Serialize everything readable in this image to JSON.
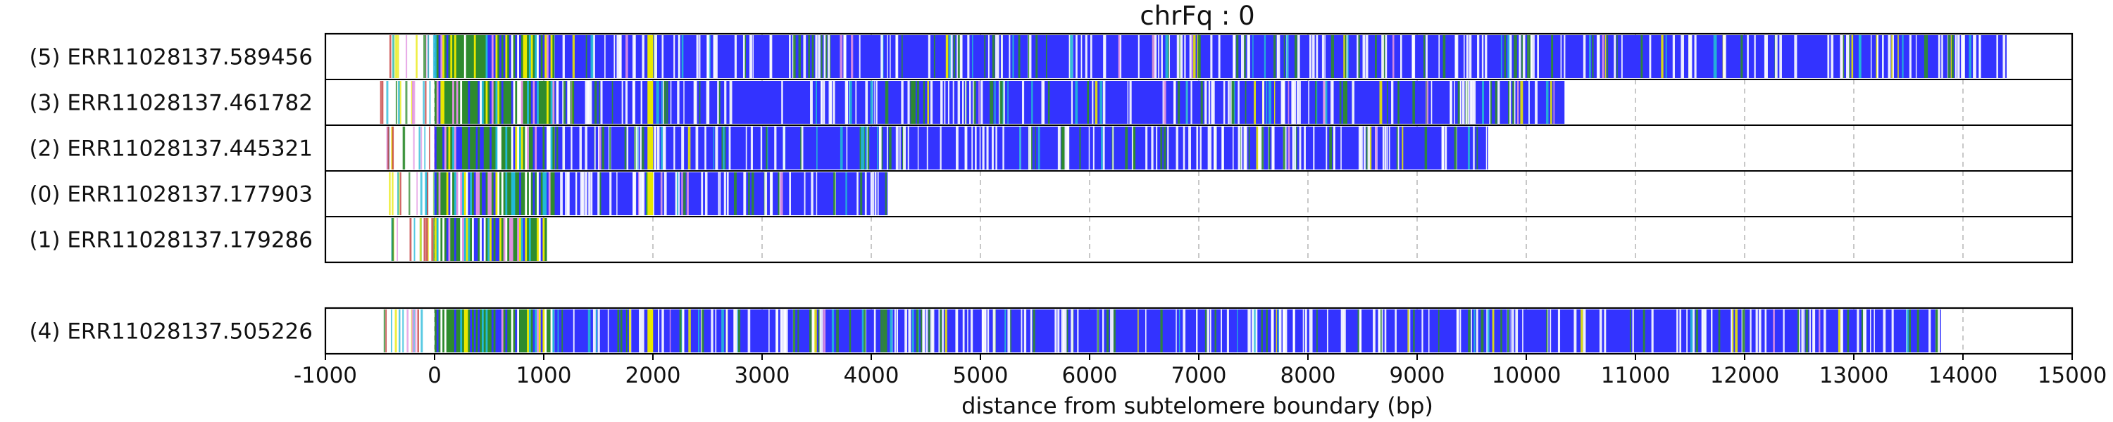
{
  "chart_data": {
    "type": "read-alignment-track",
    "title": "chrFq : 0",
    "xlabel": "distance from subtelomere boundary (bp)",
    "xlim": [
      -1000,
      15000
    ],
    "xticks": [
      -1000,
      0,
      1000,
      2000,
      3000,
      4000,
      5000,
      6000,
      7000,
      8000,
      9000,
      10000,
      11000,
      12000,
      13000,
      14000,
      15000
    ],
    "xtick_labels": [
      "-1000",
      "0",
      "1000",
      "2000",
      "3000",
      "4000",
      "5000",
      "6000",
      "7000",
      "8000",
      "9000",
      "10000",
      "11000",
      "12000",
      "13000",
      "14000",
      "15000"
    ],
    "grid": "vertical dashed",
    "colors": {
      "kmer_dominant": "#3333ff",
      "kmer_green": "#2e8b2e",
      "kmer_yellow": "#e8e800",
      "kmer_cyan": "#22b8d8",
      "kmer_pink": "#e090e0",
      "kmer_red": "#c03030",
      "grid": "#c8c8c8",
      "frame": "#000000"
    },
    "groups": [
      {
        "reads": [
          {
            "label": "(5) ERR11028137.589456",
            "start": -500,
            "end": 14400
          },
          {
            "label": "(3) ERR11028137.461782",
            "start": -500,
            "end": 10350
          },
          {
            "label": "(2) ERR11028137.445321",
            "start": -450,
            "end": 9650
          },
          {
            "label": "(0) ERR11028137.177903",
            "start": -450,
            "end": 4150
          },
          {
            "label": "(1) ERR11028137.179286",
            "start": -400,
            "end": 1020
          }
        ]
      },
      {
        "reads": [
          {
            "label": "(4) ERR11028137.505226",
            "start": -500,
            "end": 13800
          }
        ]
      }
    ]
  }
}
